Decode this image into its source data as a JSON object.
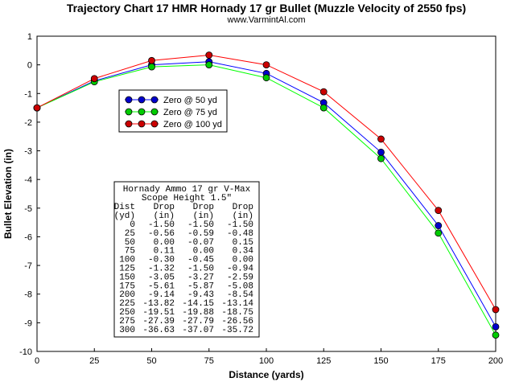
{
  "chart_data": {
    "type": "line",
    "title": "Trajectory Chart 17 HMR Hornady 17 gr Bullet (Muzzle Velocity of 2550 fps)",
    "subtitle": "www.VarmintAl.com",
    "xlabel": "Distance (yards)",
    "ylabel": "Bullet Elevation (in)",
    "xlim": [
      0,
      200
    ],
    "ylim": [
      -10,
      1
    ],
    "x_ticks": [
      0,
      25,
      50,
      75,
      100,
      125,
      150,
      175,
      200
    ],
    "y_ticks": [
      1,
      0,
      -1,
      -2,
      -3,
      -4,
      -5,
      -6,
      -7,
      -8,
      -9,
      -10
    ],
    "legend_position": "upper-left",
    "x": [
      0,
      25,
      50,
      75,
      100,
      125,
      150,
      175,
      200
    ],
    "series": [
      {
        "name": "Zero @ 50 yd",
        "color": "#0000ff",
        "marker_color": "#0000cc",
        "values": [
          -1.5,
          -0.56,
          0.0,
          0.11,
          -0.3,
          -1.32,
          -3.05,
          -5.61,
          -9.14
        ]
      },
      {
        "name": "Zero @ 75 yd",
        "color": "#00ff00",
        "marker_color": "#00cc00",
        "values": [
          -1.5,
          -0.59,
          -0.07,
          0.0,
          -0.45,
          -1.5,
          -3.27,
          -5.87,
          -9.43
        ]
      },
      {
        "name": "Zero @ 100 yd",
        "color": "#ff0000",
        "marker_color": "#cc0000",
        "values": [
          -1.5,
          -0.48,
          0.15,
          0.34,
          0.0,
          -0.94,
          -2.59,
          -5.08,
          -8.54
        ]
      }
    ],
    "data_table": {
      "title_line1": "Hornady Ammo 17 gr V-Max",
      "title_line2": "Scope Height 1.5\"",
      "header_line1": [
        "Dist",
        "Drop",
        "Drop",
        "Drop"
      ],
      "header_line2": [
        "(yd)",
        "(in)",
        "(in)",
        "(in)"
      ],
      "rows": [
        [
          "0",
          "-1.50",
          "-1.50",
          "-1.50"
        ],
        [
          "25",
          "-0.56",
          "-0.59",
          "-0.48"
        ],
        [
          "50",
          "0.00",
          "-0.07",
          "0.15"
        ],
        [
          "75",
          "0.11",
          "0.00",
          "0.34"
        ],
        [
          "100",
          "-0.30",
          "-0.45",
          "0.00"
        ],
        [
          "125",
          "-1.32",
          "-1.50",
          "-0.94"
        ],
        [
          "150",
          "-3.05",
          "-3.27",
          "-2.59"
        ],
        [
          "175",
          "-5.61",
          "-5.87",
          "-5.08"
        ],
        [
          "200",
          "-9.14",
          "-9.43",
          "-8.54"
        ],
        [
          "225",
          "-13.82",
          "-14.15",
          "-13.14"
        ],
        [
          "250",
          "-19.51",
          "-19.88",
          "-18.75"
        ],
        [
          "275",
          "-27.39",
          "-27.79",
          "-26.56"
        ],
        [
          "300",
          "-36.63",
          "-37.07",
          "-35.72"
        ]
      ]
    }
  }
}
